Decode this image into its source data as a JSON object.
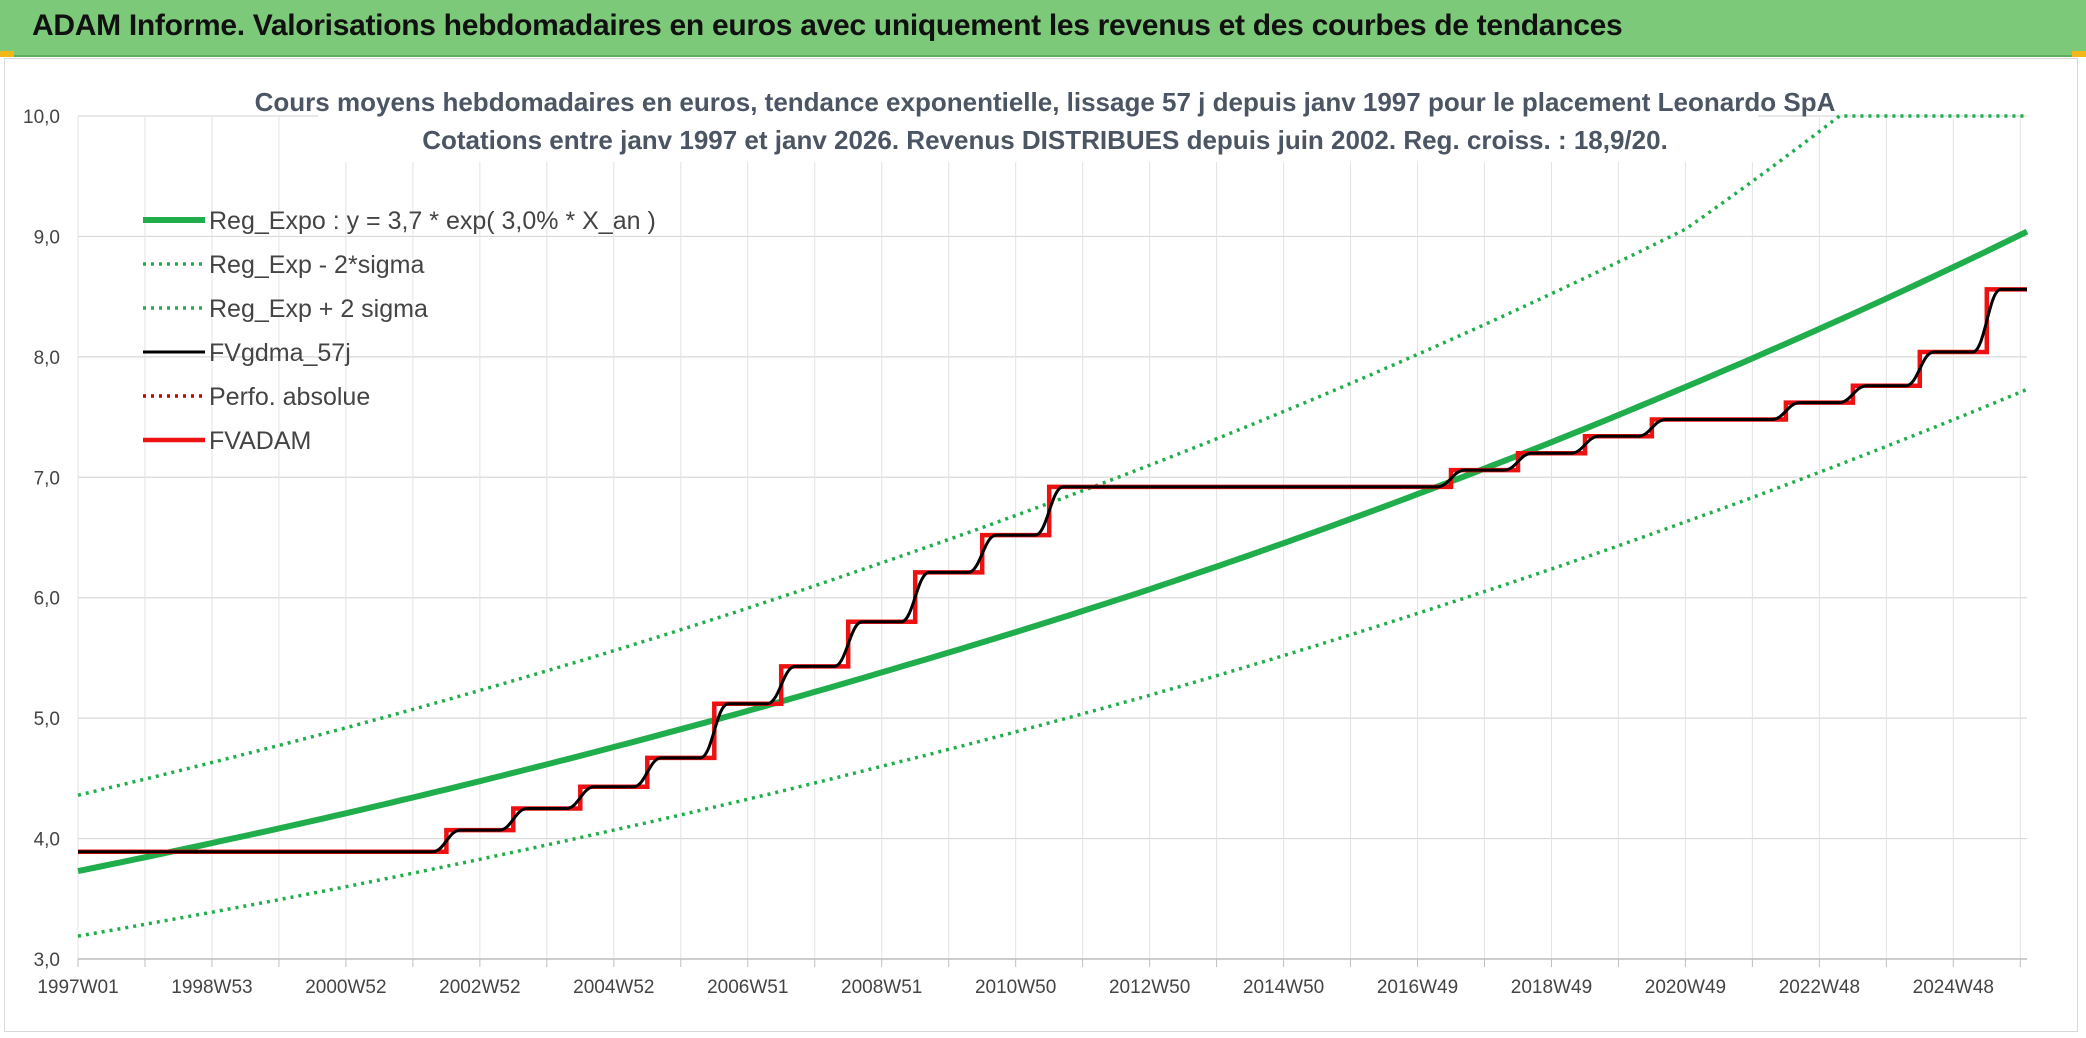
{
  "header": {
    "title": "ADAM Informe. Valorisations hebdomadaires en euros avec uniquement les revenus et des courbes de tendances"
  },
  "colors": {
    "banner": "#7dc97a",
    "reg_expo": "#1fae4b",
    "sigma_lines": "#1fae4b",
    "fvgdma": "#000000",
    "perfo": "#cc0000",
    "fvadam": "#ee1111"
  },
  "chart_data": {
    "type": "line",
    "title": "Cours moyens hebdomadaires en euros, tendance exponentielle, lissage 57 j depuis janv 1997 pour le placement Leonardo SpA",
    "subtitle": "Cotations entre janv 1997 et janv 2026. Revenus DISTRIBUES depuis juin 2002. Reg. croiss. : 18,9/20.",
    "xlabel": "",
    "ylabel": "",
    "ylim": [
      3.0,
      10.0
    ],
    "x_range": [
      1997.0,
      2026.1
    ],
    "grid": true,
    "legend_position": "top-left",
    "y_ticks": [
      "3,0",
      "4,0",
      "5,0",
      "6,0",
      "7,0",
      "8,0",
      "9,0",
      "10,0"
    ],
    "x_ticks": [
      {
        "label": "1997W01",
        "x": 1997.0
      },
      {
        "label": "1998W53",
        "x": 1999.0
      },
      {
        "label": "2000W52",
        "x": 2001.0
      },
      {
        "label": "2002W52",
        "x": 2003.0
      },
      {
        "label": "2004W52",
        "x": 2005.0
      },
      {
        "label": "2006W51",
        "x": 2007.0
      },
      {
        "label": "2008W51",
        "x": 2009.0
      },
      {
        "label": "2010W50",
        "x": 2011.0
      },
      {
        "label": "2012W50",
        "x": 2013.0
      },
      {
        "label": "2014W50",
        "x": 2015.0
      },
      {
        "label": "2016W49",
        "x": 2017.0
      },
      {
        "label": "2018W49",
        "x": 2019.0
      },
      {
        "label": "2020W49",
        "x": 2021.0
      },
      {
        "label": "2022W48",
        "x": 2023.0
      },
      {
        "label": "2024W48",
        "x": 2025.0
      }
    ],
    "series": [
      {
        "name": "Reg_Expo : y = 3,7 * exp( 3,0% *  X_an )",
        "style": "solid-thick",
        "color": "#1fae4b",
        "x": [
          1997.0,
          2001.0,
          2005.0,
          2009.0,
          2013.0,
          2017.0,
          2021.0,
          2026.1
        ],
        "values": [
          3.73,
          4.21,
          4.76,
          5.38,
          6.07,
          6.86,
          7.75,
          9.04
        ]
      },
      {
        "name": "Reg_Exp - 2*sigma",
        "style": "dotted",
        "color": "#1fae4b",
        "x": [
          1997.0,
          2001.0,
          2005.0,
          2009.0,
          2013.0,
          2017.0,
          2021.0,
          2026.1
        ],
        "values": [
          3.19,
          3.6,
          4.07,
          4.6,
          5.19,
          5.87,
          6.63,
          7.73
        ]
      },
      {
        "name": "Reg_Exp + 2 sigma",
        "style": "dotted",
        "color": "#1fae4b",
        "x": [
          1997.0,
          2001.0,
          2005.0,
          2009.0,
          2013.0,
          2017.0,
          2021.0,
          2023.3,
          2026.1
        ],
        "values": [
          4.36,
          4.92,
          5.56,
          6.29,
          7.1,
          8.02,
          9.06,
          10.0,
          10.0
        ]
      },
      {
        "name": "FVgdma_57j",
        "style": "solid",
        "color": "#000000",
        "x": [
          1997.0,
          2002.5,
          2003.5,
          2004.5,
          2005.5,
          2006.5,
          2007.5,
          2008.5,
          2009.5,
          2010.5,
          2011.5,
          2017.5,
          2018.5,
          2019.5,
          2020.5,
          2022.5,
          2023.5,
          2024.5,
          2025.5,
          2026.1
        ],
        "values": [
          3.89,
          4.07,
          4.25,
          4.43,
          4.67,
          5.12,
          5.43,
          5.8,
          6.21,
          6.52,
          6.92,
          7.06,
          7.2,
          7.34,
          7.48,
          7.62,
          7.76,
          8.04,
          8.56,
          8.56
        ]
      },
      {
        "name": "Perfo. absolue",
        "style": "dotted",
        "color": "#cc0000",
        "x": [],
        "values": []
      },
      {
        "name": "FVADAM",
        "style": "step-thick",
        "color": "#ee1111",
        "x": [
          1997.0,
          2002.5,
          2003.5,
          2004.5,
          2005.5,
          2006.5,
          2007.5,
          2008.5,
          2009.5,
          2010.5,
          2011.5,
          2017.5,
          2018.5,
          2019.5,
          2020.5,
          2022.5,
          2023.5,
          2024.5,
          2025.5,
          2026.1
        ],
        "values": [
          3.89,
          4.07,
          4.25,
          4.43,
          4.67,
          5.12,
          5.43,
          5.8,
          6.21,
          6.52,
          6.92,
          7.06,
          7.2,
          7.34,
          7.48,
          7.62,
          7.76,
          8.04,
          8.56,
          8.56
        ]
      }
    ]
  }
}
